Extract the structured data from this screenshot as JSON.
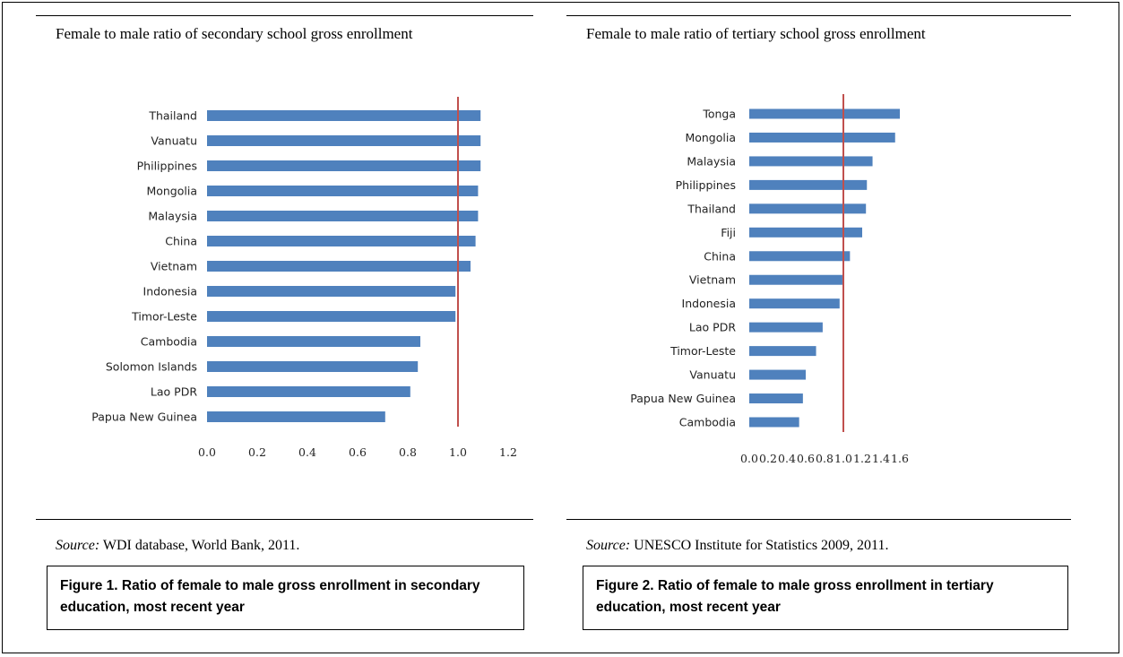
{
  "chart_data": [
    {
      "type": "bar",
      "orientation": "horizontal",
      "title": "Female to male ratio of secondary school gross enrollment",
      "categories": [
        "Thailand",
        "Vanuatu",
        "Philippines",
        "Mongolia",
        "Malaysia",
        "China",
        "Vietnam",
        "Indonesia",
        "Timor-Leste",
        "Cambodia",
        "Solomon Islands",
        "Lao PDR",
        "Papua New Guinea"
      ],
      "values": [
        1.09,
        1.09,
        1.09,
        1.08,
        1.08,
        1.07,
        1.05,
        0.99,
        0.99,
        0.85,
        0.84,
        0.81,
        0.71
      ],
      "xlim": [
        0,
        1.2
      ],
      "xticks": [
        "0.0",
        "0.2",
        "0.4",
        "0.6",
        "0.8",
        "1.0",
        "1.2"
      ],
      "reference_line": 1.0,
      "bar_color": "#4f81bd",
      "reference_color": "#c0504d",
      "source_label": "Source:",
      "source_text": " WDI database, World Bank, 2011.",
      "caption": "Figure 1. Ratio of female to male gross enrollment in secondary education, most recent year"
    },
    {
      "type": "bar",
      "orientation": "horizontal",
      "title": "Female to male ratio of tertiary school gross enrollment",
      "categories": [
        "Tonga",
        "Mongolia",
        "Malaysia",
        "Philippines",
        "Thailand",
        "Fiji",
        "China",
        "Vietnam",
        "Indonesia",
        "Lao PDR",
        "Timor-Leste",
        "Vanuatu",
        "Papua New Guinea",
        "Cambodia"
      ],
      "values": [
        1.6,
        1.55,
        1.31,
        1.25,
        1.24,
        1.2,
        1.07,
        0.99,
        0.96,
        0.78,
        0.71,
        0.6,
        0.57,
        0.53
      ],
      "xlim": [
        0,
        1.6
      ],
      "xticks": [
        "0.0",
        "0.2",
        "0.4",
        "0.6",
        "0.8",
        "1.0",
        "1.2",
        "1.4",
        "1.6"
      ],
      "reference_line": 1.0,
      "bar_color": "#4f81bd",
      "reference_color": "#c0504d",
      "source_label": "Source:",
      "source_text": " UNESCO Institute for Statistics 2009, 2011.",
      "caption": "Figure 2. Ratio of female to male gross enrollment in tertiary education, most recent year"
    }
  ]
}
